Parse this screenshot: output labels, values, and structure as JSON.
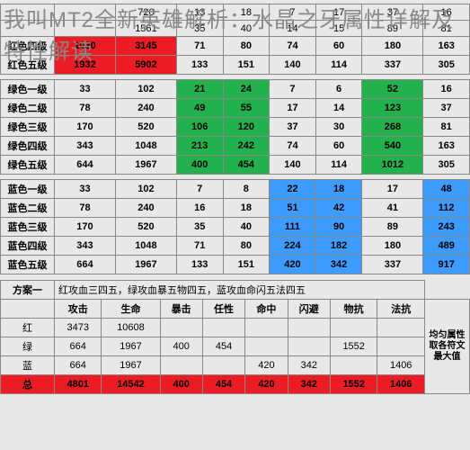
{
  "title": "我叫MT2全新英雄解析：水晶之牙属性详解及特性解读",
  "main_table": {
    "header_partial": [
      "",
      "",
      "",
      "",
      "",
      "",
      "",
      ""
    ],
    "rows": [
      {
        "label": "",
        "cells": [
          "",
          "720",
          "13",
          "18",
          "7",
          "17",
          "37",
          "16"
        ],
        "hl": [],
        "rowhl": ""
      },
      {
        "label": "",
        "cells": [
          "",
          "1561",
          "35",
          "40",
          "14",
          "15",
          "89",
          "81"
        ],
        "hl": [],
        "rowhl": ""
      },
      {
        "label": "红色四级",
        "cells": [
          "1030",
          "3145",
          "71",
          "80",
          "74",
          "60",
          "180",
          "163"
        ],
        "hl": [
          0,
          1
        ],
        "hlcolor": "red-cell",
        "bold": true
      },
      {
        "label": "红色五级",
        "cells": [
          "1932",
          "5902",
          "133",
          "151",
          "140",
          "114",
          "337",
          "305"
        ],
        "hl": [
          0,
          1
        ],
        "hlcolor": "red-cell",
        "bold": true
      },
      {
        "label": "SPACER"
      },
      {
        "label": "绿色一级",
        "cells": [
          "33",
          "102",
          "21",
          "24",
          "7",
          "6",
          "52",
          "16"
        ],
        "hl": [
          2,
          3,
          6
        ],
        "hlcolor": "green-cell",
        "bold": true
      },
      {
        "label": "绿色二级",
        "cells": [
          "78",
          "240",
          "49",
          "55",
          "17",
          "14",
          "123",
          "37"
        ],
        "hl": [
          2,
          3,
          6
        ],
        "hlcolor": "green-cell",
        "bold": true
      },
      {
        "label": "绿色三级",
        "cells": [
          "170",
          "520",
          "106",
          "120",
          "37",
          "30",
          "268",
          "81"
        ],
        "hl": [
          2,
          3,
          6
        ],
        "hlcolor": "green-cell",
        "bold": true
      },
      {
        "label": "绿色四级",
        "cells": [
          "343",
          "1048",
          "213",
          "242",
          "74",
          "60",
          "540",
          "163"
        ],
        "hl": [
          2,
          3,
          6
        ],
        "hlcolor": "green-cell",
        "bold": true
      },
      {
        "label": "绿色五级",
        "cells": [
          "644",
          "1967",
          "400",
          "454",
          "140",
          "114",
          "1012",
          "305"
        ],
        "hl": [
          2,
          3,
          6
        ],
        "hlcolor": "green-cell",
        "bold": true
      },
      {
        "label": "SPACER"
      },
      {
        "label": "蓝色一级",
        "cells": [
          "33",
          "102",
          "7",
          "8",
          "22",
          "18",
          "17",
          "48"
        ],
        "hl": [
          4,
          5,
          7
        ],
        "hlcolor": "blue-cell",
        "bold": true
      },
      {
        "label": "蓝色二级",
        "cells": [
          "78",
          "240",
          "16",
          "18",
          "51",
          "42",
          "41",
          "112"
        ],
        "hl": [
          4,
          5,
          7
        ],
        "hlcolor": "blue-cell",
        "bold": true
      },
      {
        "label": "蓝色三级",
        "cells": [
          "170",
          "520",
          "35",
          "40",
          "111",
          "90",
          "89",
          "243"
        ],
        "hl": [
          4,
          5,
          7
        ],
        "hlcolor": "blue-cell",
        "bold": true
      },
      {
        "label": "蓝色四级",
        "cells": [
          "343",
          "1048",
          "71",
          "80",
          "224",
          "182",
          "180",
          "489"
        ],
        "hl": [
          4,
          5,
          7
        ],
        "hlcolor": "blue-cell",
        "bold": true
      },
      {
        "label": "蓝色五级",
        "cells": [
          "664",
          "1967",
          "133",
          "151",
          "420",
          "342",
          "337",
          "917"
        ],
        "hl": [
          4,
          5,
          7
        ],
        "hlcolor": "blue-cell",
        "bold": true
      }
    ]
  },
  "plan_table": {
    "plan_label": "方案一",
    "plan_desc": "红攻血三四五，绿攻血暴五物四五，蓝攻血命闪五法四五",
    "headers": [
      "",
      "攻击",
      "生命",
      "暴击",
      "任性",
      "命中",
      "闪避",
      "物抗",
      "法抗"
    ],
    "note": "均匀属性取各符文最大值",
    "rows": [
      {
        "label": "红",
        "cells": [
          "3473",
          "10608",
          "",
          "",
          "",
          "",
          "",
          ""
        ]
      },
      {
        "label": "绿",
        "cells": [
          "664",
          "1967",
          "400",
          "454",
          "",
          "",
          "1552",
          ""
        ]
      },
      {
        "label": "蓝",
        "cells": [
          "664",
          "1967",
          "",
          "",
          "420",
          "342",
          "",
          "1406"
        ]
      },
      {
        "label": "总",
        "cells": [
          "4801",
          "14542",
          "400",
          "454",
          "420",
          "342",
          "1552",
          "1406"
        ],
        "sum": true
      }
    ]
  }
}
